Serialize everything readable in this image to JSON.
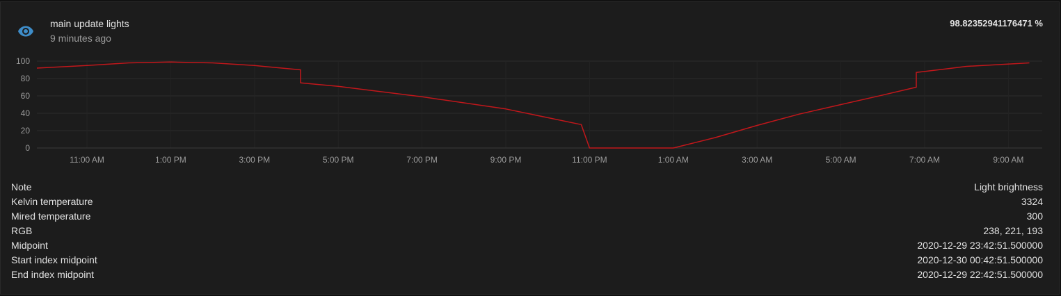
{
  "header": {
    "entity_name": "main update lights",
    "last_changed": "9 minutes ago",
    "state": "98.82352941176471 %",
    "icon": "eye-icon"
  },
  "colors": {
    "line": "#c2171b",
    "icon": "#3e8dc9",
    "background": "#1c1c1c",
    "grid": "#2c2c2c"
  },
  "chart_data": {
    "type": "line",
    "title": "",
    "xlabel": "",
    "ylabel": "",
    "ylim": [
      0,
      100
    ],
    "yticks": [
      "0",
      "20",
      "40",
      "60",
      "80",
      "100"
    ],
    "xticks": [
      "11:00 AM",
      "1:00 PM",
      "3:00 PM",
      "5:00 PM",
      "7:00 PM",
      "9:00 PM",
      "11:00 PM",
      "1:00 AM",
      "3:00 AM",
      "5:00 AM",
      "7:00 AM",
      "9:00 AM"
    ],
    "x_hours_from_xtick_start": [
      -1.2,
      0.0,
      1.0,
      2.0,
      3.0,
      4.0,
      5.1,
      5.1,
      6.0,
      8.0,
      10.0,
      11.8,
      12.0,
      13.0,
      14.0,
      14.0,
      15.0,
      16.0,
      17.0,
      18.0,
      19.0,
      19.8,
      19.8,
      20.5,
      21.0,
      22.5
    ],
    "y_values": [
      92,
      95,
      98,
      99,
      98,
      95,
      90,
      75,
      71,
      59,
      45,
      27,
      0,
      0,
      0,
      0,
      12,
      26,
      39,
      50,
      61,
      70,
      87,
      91,
      94,
      98
    ]
  },
  "attributes": [
    {
      "key": "Note",
      "value": "Light brightness"
    },
    {
      "key": "Kelvin temperature",
      "value": "3324"
    },
    {
      "key": "Mired temperature",
      "value": "300"
    },
    {
      "key": "RGB",
      "value": "238, 221, 193"
    },
    {
      "key": "Midpoint",
      "value": "2020-12-29 23:42:51.500000"
    },
    {
      "key": "Start index midpoint",
      "value": "2020-12-30 00:42:51.500000"
    },
    {
      "key": "End index midpoint",
      "value": "2020-12-29 22:42:51.500000"
    }
  ]
}
